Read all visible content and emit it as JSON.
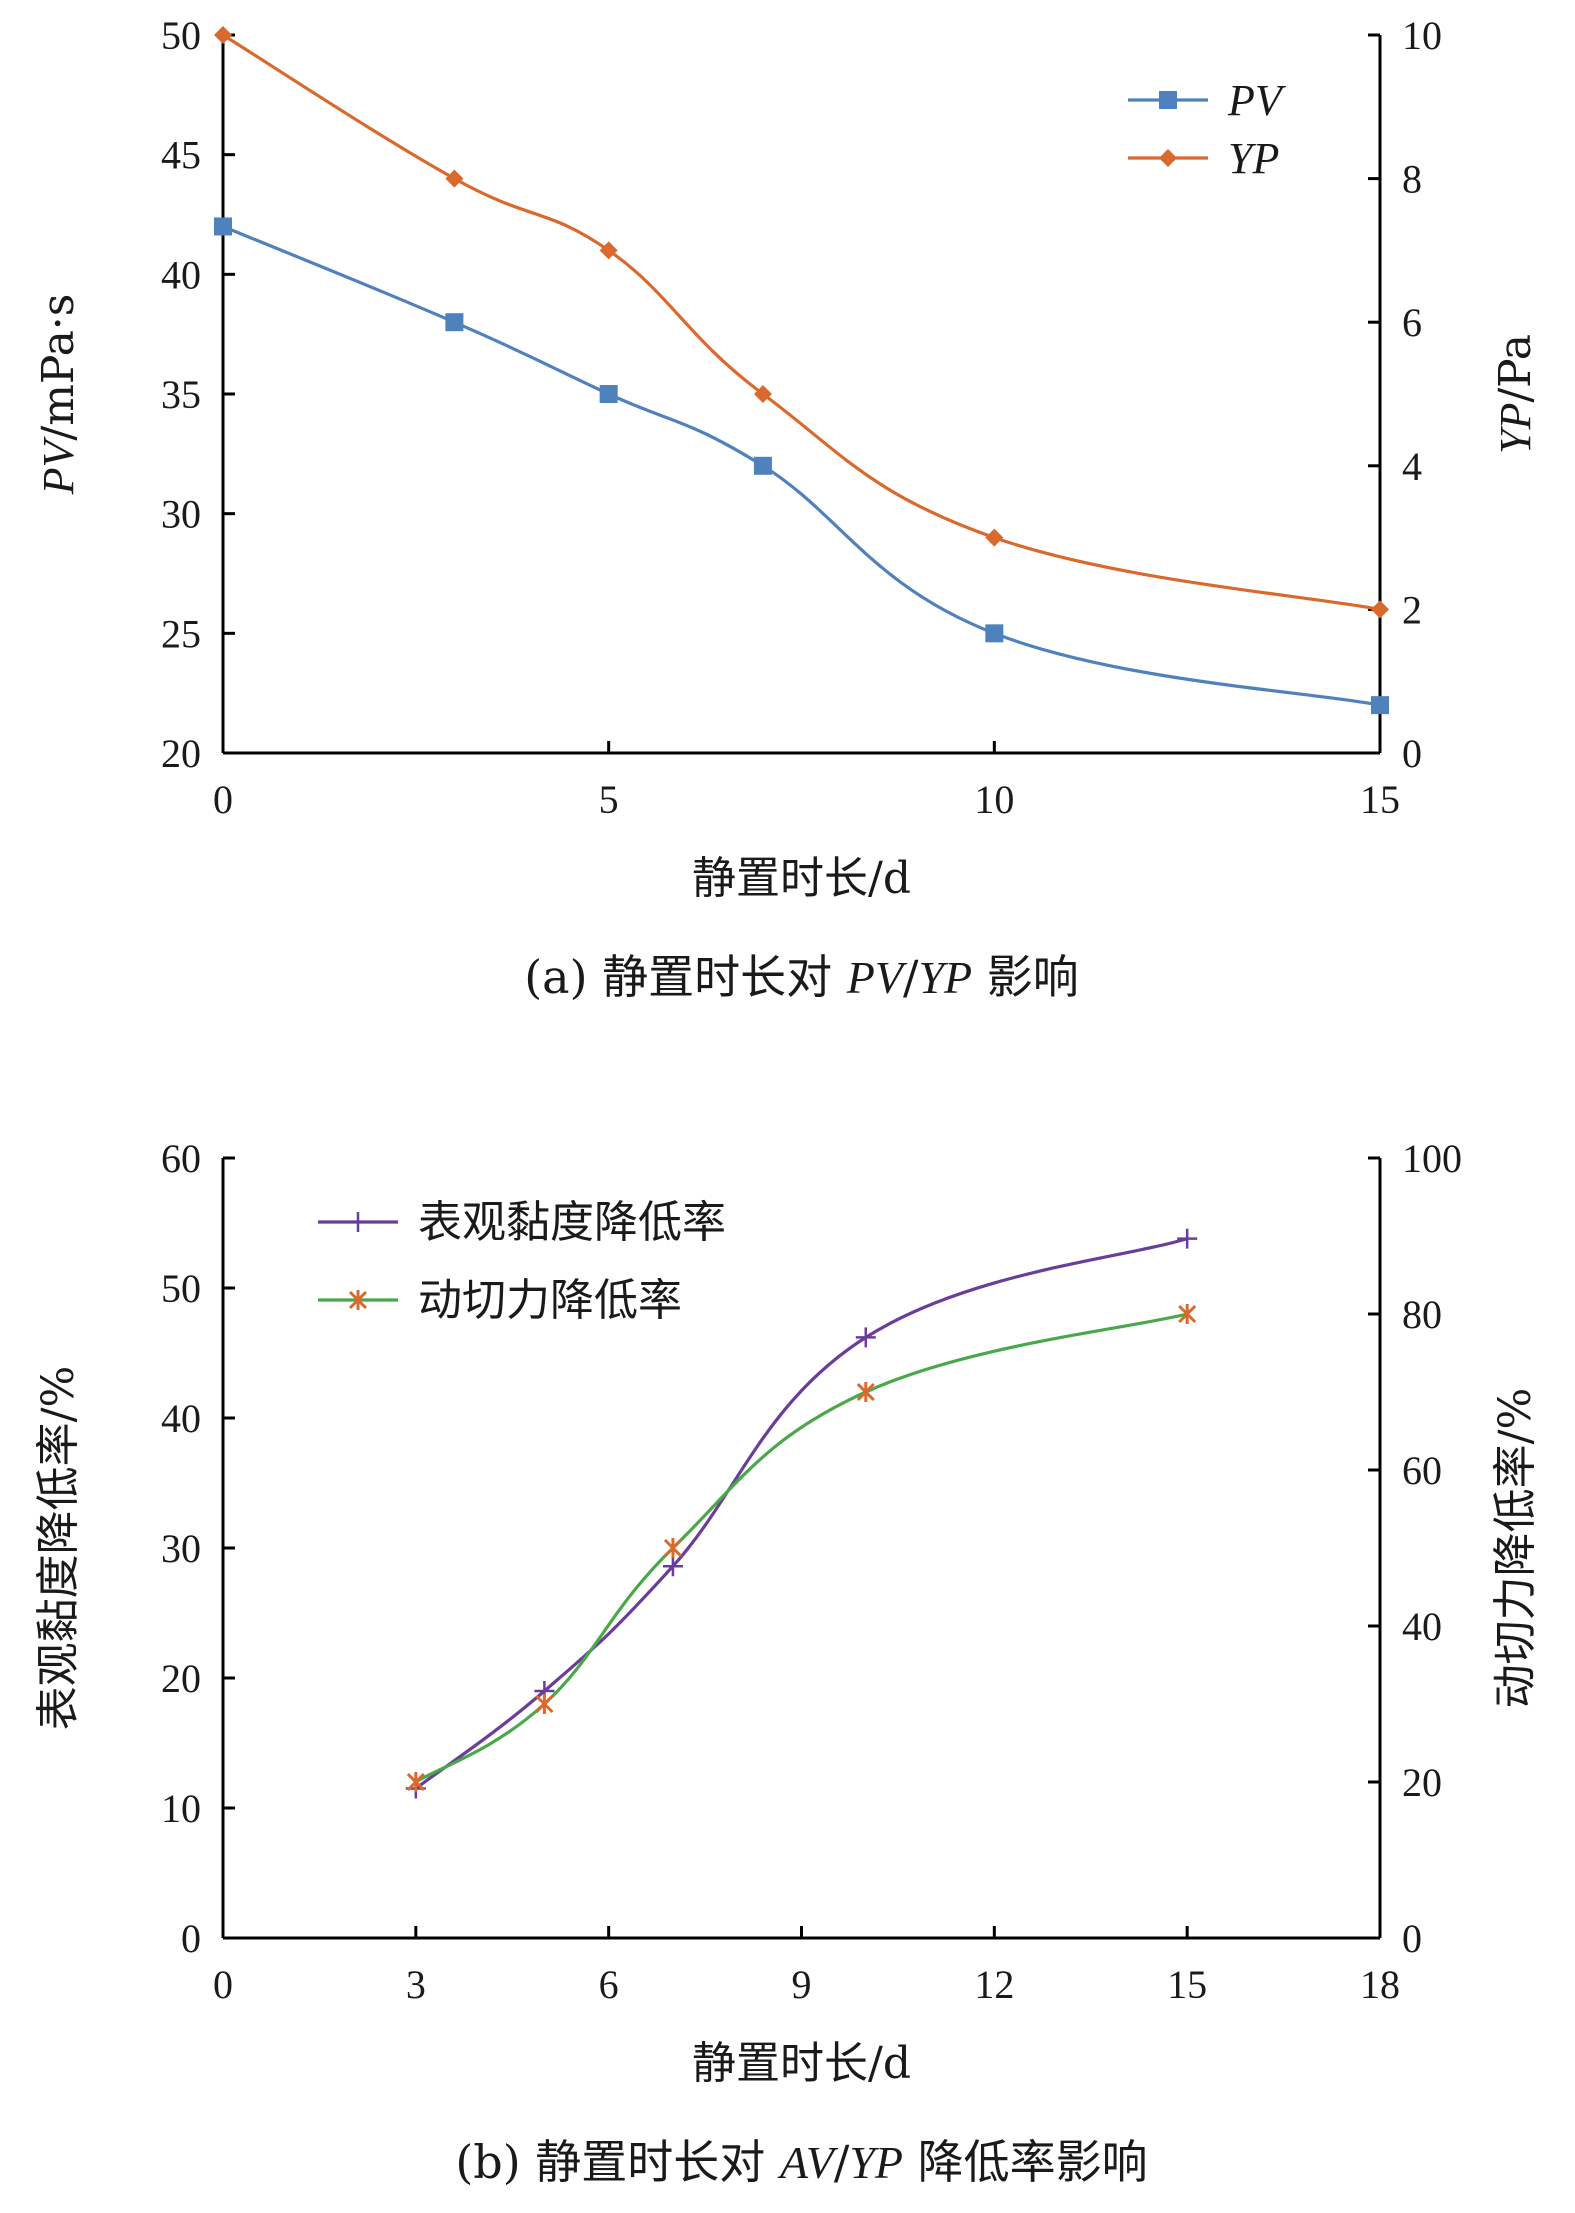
{
  "chart_data": [
    {
      "type": "line",
      "caption": "(a) 静置时长对 PV/YP 影响",
      "xlabel": "静置时长/d",
      "ylabel_left": "PV/mPa·s",
      "ylabel_right": "YP/Pa",
      "xlim": [
        0,
        15
      ],
      "xticks": [
        0,
        5,
        10,
        15
      ],
      "ylim_left": [
        20,
        50
      ],
      "yticks_left": [
        20,
        25,
        30,
        35,
        40,
        45,
        50
      ],
      "ylim_right": [
        0,
        10
      ],
      "yticks_right": [
        0,
        2,
        4,
        6,
        8,
        10
      ],
      "legend_position": "top-right",
      "grid": false,
      "series": [
        {
          "name": "PV",
          "axis": "left",
          "color": "#4f81bd",
          "marker": "square",
          "x": [
            0,
            3,
            5,
            7,
            10,
            15
          ],
          "values": [
            42,
            38,
            35,
            32,
            25,
            22
          ]
        },
        {
          "name": "YP",
          "axis": "right",
          "color": "#d9692d",
          "marker": "diamond",
          "x": [
            0,
            3,
            5,
            7,
            10,
            15
          ],
          "values": [
            10,
            8,
            7,
            5,
            3,
            2
          ]
        }
      ]
    },
    {
      "type": "line",
      "caption": "(b) 静置时长对 AV/YP 降低率影响",
      "xlabel": "静置时长/d",
      "ylabel_left": "表观黏度降低率/%",
      "ylabel_right": "动切力降低率/%",
      "xlim": [
        0,
        18
      ],
      "xticks": [
        0,
        3,
        6,
        9,
        12,
        15,
        18
      ],
      "ylim_left": [
        0,
        60
      ],
      "yticks_left": [
        0,
        10,
        20,
        30,
        40,
        50,
        60
      ],
      "ylim_right": [
        0,
        100
      ],
      "yticks_right": [
        0,
        20,
        40,
        60,
        80,
        100
      ],
      "legend_position": "top-left",
      "grid": false,
      "series": [
        {
          "name": "表观黏度降低率",
          "axis": "left",
          "color": "#6a3d9a",
          "marker": "plus",
          "x": [
            3,
            5,
            7,
            10,
            15
          ],
          "values": [
            11.5,
            19,
            28.6,
            46.2,
            53.8
          ]
        },
        {
          "name": "动切力降低率",
          "axis": "right",
          "color": "#4aa84a",
          "marker": "asterisk",
          "markerColor": "#d9692d",
          "x": [
            3,
            5,
            7,
            10,
            15
          ],
          "values": [
            20,
            30,
            50,
            70,
            80
          ]
        }
      ]
    }
  ]
}
